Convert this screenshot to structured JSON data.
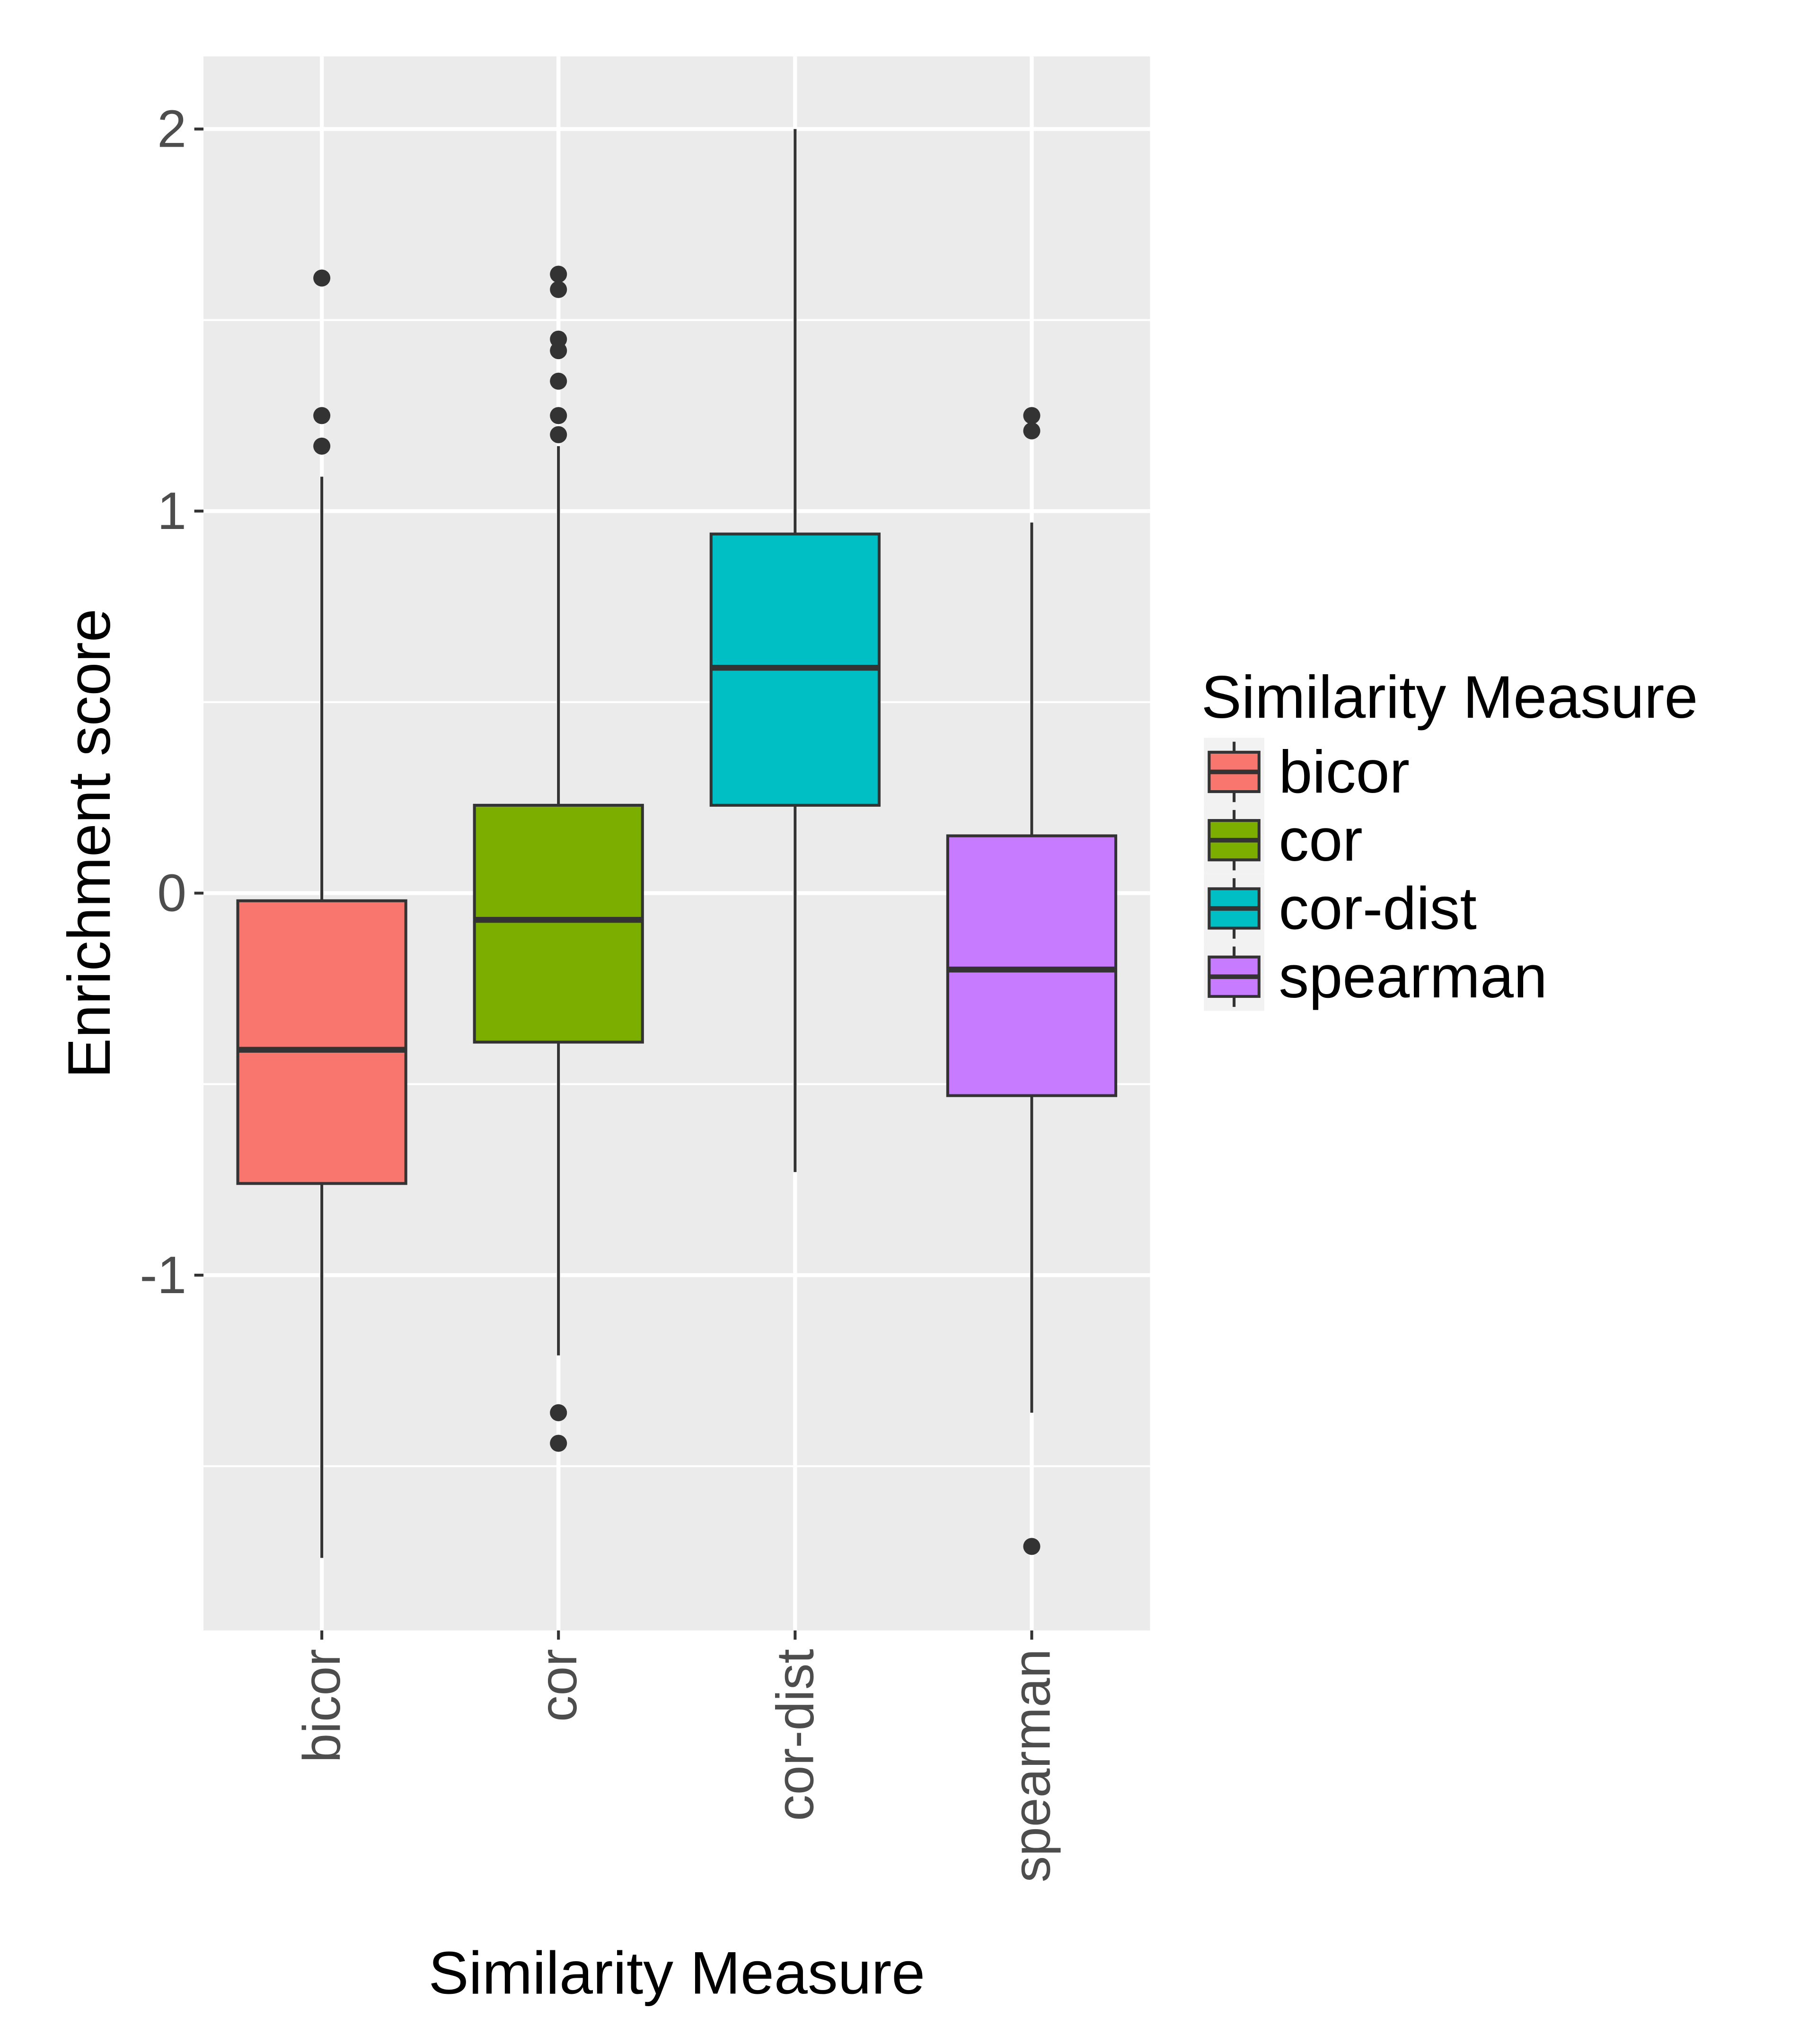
{
  "chart_data": {
    "type": "boxplot",
    "xlabel": "Similarity Measure",
    "ylabel": "Enrichment score",
    "ylim": [
      -1.93,
      2.19
    ],
    "y_ticks": [
      -1,
      0,
      1,
      2
    ],
    "y_tick_labels": [
      "-1",
      "0",
      "1",
      "2"
    ],
    "grid": true,
    "legend": {
      "title": "Similarity Measure",
      "position": "right",
      "entries": [
        "bicor",
        "cor",
        "cor-dist",
        "spearman"
      ]
    },
    "categories": [
      "bicor",
      "cor",
      "cor-dist",
      "spearman"
    ],
    "colors": [
      "#F8766D",
      "#7CAE00",
      "#00BFC4",
      "#C77CFF"
    ],
    "boxes": [
      {
        "name": "bicor",
        "whisker_low": -1.74,
        "q1": -0.76,
        "median": -0.41,
        "q3": -0.02,
        "whisker_high": 1.09,
        "outliers": [
          1.61,
          1.25,
          1.17
        ]
      },
      {
        "name": "cor",
        "whisker_low": -1.21,
        "q1": -0.39,
        "median": -0.07,
        "q3": 0.23,
        "whisker_high": 1.17,
        "outliers": [
          1.62,
          1.58,
          1.45,
          1.42,
          1.34,
          1.25,
          1.2,
          -1.36,
          -1.44
        ]
      },
      {
        "name": "cor-dist",
        "whisker_low": -0.73,
        "q1": 0.23,
        "median": 0.59,
        "q3": 0.94,
        "whisker_high": 2.0,
        "outliers": []
      },
      {
        "name": "spearman",
        "whisker_low": -1.36,
        "q1": -0.53,
        "median": -0.2,
        "q3": 0.15,
        "whisker_high": 0.97,
        "outliers": [
          1.25,
          1.21,
          -1.71
        ]
      }
    ]
  }
}
